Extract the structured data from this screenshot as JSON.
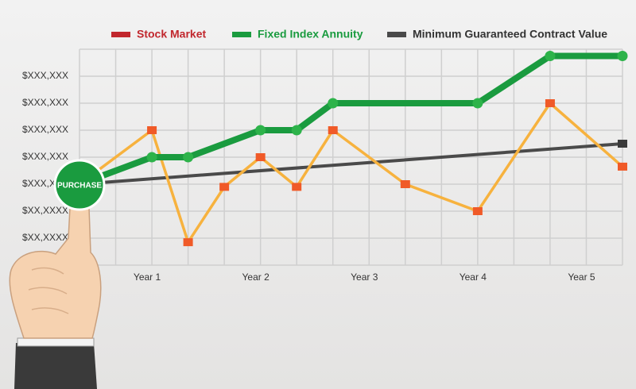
{
  "chart_data": {
    "type": "line",
    "legend": [
      {
        "name": "Stock Market",
        "color": "#c1272d"
      },
      {
        "name": "Fixed Index Annuity",
        "color": "#1a9b3f"
      },
      {
        "name": "Minimum Guaranteed Contract Value",
        "color": "#4a4a4a"
      }
    ],
    "series": [
      {
        "name": "Stock Market",
        "color": "#f7b23e",
        "marker_color": "#f05a28",
        "marker": "square",
        "x": [
          4,
          12,
          16,
          20,
          24,
          28,
          32,
          40,
          48,
          56,
          64
        ],
        "values": [
          3,
          5,
          0.85,
          2.9,
          4,
          2.9,
          5,
          3,
          2,
          6,
          3.65
        ]
      },
      {
        "name": "Fixed Index Annuity",
        "color": "#1a9b3f",
        "marker_color": "#2db34a",
        "marker": "circle",
        "x": [
          4,
          12,
          16,
          24,
          28,
          32,
          48,
          56,
          64
        ],
        "values": [
          3,
          4,
          4,
          5,
          5,
          6,
          6,
          7.75,
          7.75
        ]
      },
      {
        "name": "Minimum Guaranteed Contract Value",
        "color": "#4a4a4a",
        "marker_color": "#3a3a3a",
        "marker": "end-square",
        "x": [
          4,
          64
        ],
        "values": [
          3,
          4.5
        ]
      }
    ],
    "xlim": [
      4,
      64
    ],
    "xticks": [
      {
        "value": 12,
        "label": "Year 1"
      },
      {
        "value": 24,
        "label": "Year 2"
      },
      {
        "value": 36,
        "label": "Year 3"
      },
      {
        "value": 48,
        "label": "Year 4"
      },
      {
        "value": 60,
        "label": "Year 5"
      }
    ],
    "ylim": [
      0,
      8
    ],
    "yticks": [
      {
        "value": 1,
        "label": "$XX,XXXX"
      },
      {
        "value": 2,
        "label": "$XX,XXXX"
      },
      {
        "value": 3,
        "label": "$XXX,X"
      },
      {
        "value": 4,
        "label": "$XXX,XXX"
      },
      {
        "value": 5,
        "label": "$XXX,XXX"
      },
      {
        "value": 6,
        "label": "$XXX,XXX"
      },
      {
        "value": 7,
        "label": "$XXX,XXX"
      }
    ],
    "xgrid_step": 4,
    "grid": true,
    "button_label": "PURCHASE"
  }
}
